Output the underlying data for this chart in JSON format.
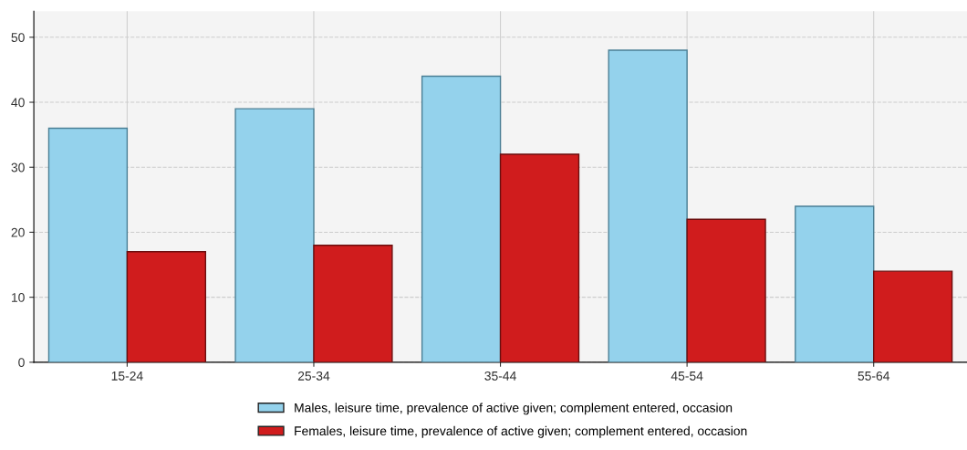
{
  "chart_data": {
    "type": "bar",
    "categories": [
      "15-24",
      "25-34",
      "35-44",
      "45-54",
      "55-64"
    ],
    "series": [
      {
        "name": "Males, leisure time, prevalence of active given; complement entered, occasion",
        "color": "#94d2ec",
        "values": [
          36,
          39,
          44,
          48,
          24
        ]
      },
      {
        "name": "Females, leisure time, prevalence of active given; complement entered, occasion",
        "color": "#d01c1d",
        "values": [
          17,
          18,
          32,
          22,
          14
        ]
      }
    ],
    "ylim": [
      0,
      54
    ],
    "yticks": [
      0,
      10,
      20,
      30,
      40,
      50
    ],
    "grid": true,
    "legend": "bottom"
  }
}
